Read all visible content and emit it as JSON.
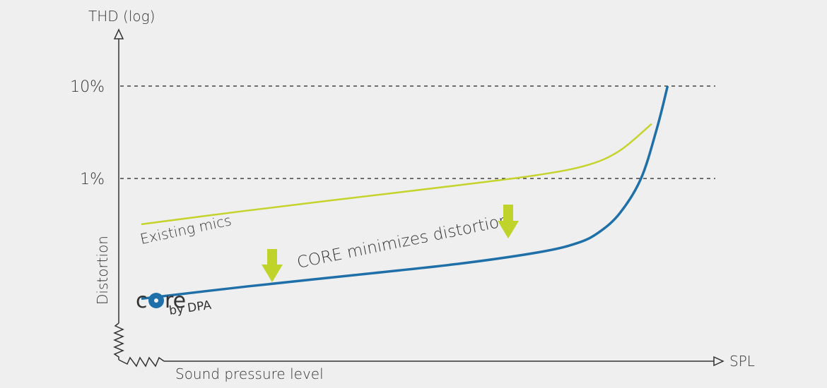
{
  "chart_data": {
    "type": "line",
    "title": "",
    "ylabel": "THD (log)",
    "y_side_label": "Distortion",
    "xlabel": "SPL",
    "x_side_label": "Sound pressure level",
    "yscale": "log",
    "ylim": [
      0.04,
      40
    ],
    "yticks": [
      {
        "value": 10,
        "label": "10%"
      },
      {
        "value": 1,
        "label": "1%"
      }
    ],
    "gridlines": "dashed at tick values",
    "series": [
      {
        "name": "Existing mics",
        "color": "#c5d42c",
        "x": [
          0,
          20,
          40,
          60,
          75,
          84,
          90,
          96
        ],
        "y": [
          0.32,
          0.45,
          0.62,
          0.85,
          1.1,
          1.4,
          2.0,
          3.9
        ]
      },
      {
        "name": "",
        "color": "#1f6fa8",
        "x": [
          0,
          20,
          40,
          60,
          75,
          82,
          86,
          90,
          94,
          97,
          99
        ],
        "y": [
          0.05,
          0.068,
          0.09,
          0.12,
          0.16,
          0.2,
          0.26,
          0.42,
          1.0,
          3.5,
          10
        ]
      }
    ],
    "annotations": {
      "main_text": "CORE minimizes distortion",
      "arrow_color": "#bfd32a",
      "logo_text": "core",
      "logo_sub": "by DPA",
      "logo_color": "#1f6fa8"
    }
  }
}
